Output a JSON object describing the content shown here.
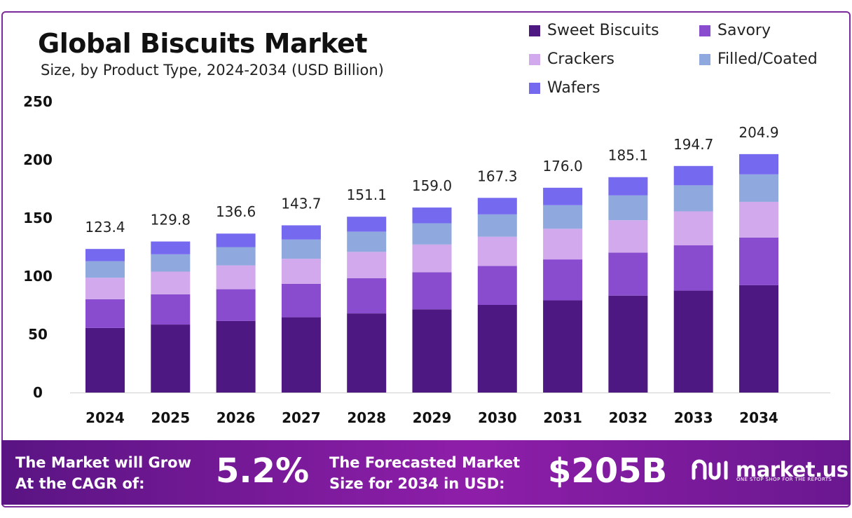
{
  "chart_data": {
    "type": "bar",
    "stacked": true,
    "title": "Global Biscuits Market",
    "subtitle": "Size, by Product Type, 2024-2034 (USD Billion)",
    "categories": [
      "2024",
      "2025",
      "2026",
      "2027",
      "2028",
      "2029",
      "2030",
      "2031",
      "2032",
      "2033",
      "2034"
    ],
    "series": [
      {
        "name": "Sweet Biscuits",
        "color": "#4e1882",
        "values": [
          55.5,
          58.4,
          61.5,
          64.7,
          68.0,
          71.5,
          75.3,
          79.2,
          83.3,
          87.6,
          92.2
        ]
      },
      {
        "name": "Savory",
        "color": "#8a4ccf",
        "values": [
          24.7,
          26.0,
          27.3,
          28.7,
          30.2,
          31.8,
          33.5,
          35.2,
          37.0,
          38.9,
          41.0
        ]
      },
      {
        "name": "Crackers",
        "color": "#d1a9ec",
        "values": [
          18.5,
          19.5,
          20.5,
          21.6,
          22.7,
          23.9,
          25.1,
          26.4,
          27.8,
          29.2,
          30.7
        ]
      },
      {
        "name": "Filled/Coated",
        "color": "#8fa8dd",
        "values": [
          14.2,
          14.9,
          15.7,
          16.5,
          17.4,
          18.3,
          19.2,
          20.2,
          21.3,
          22.4,
          23.6
        ]
      },
      {
        "name": "Wafers",
        "color": "#7569f0",
        "values": [
          10.5,
          11.0,
          11.6,
          12.2,
          12.8,
          13.5,
          14.2,
          15.0,
          15.7,
          16.6,
          17.4
        ]
      }
    ],
    "totals": [
      "123.4",
      "129.8",
      "136.6",
      "143.7",
      "151.1",
      "159.0",
      "167.3",
      "176.0",
      "185.1",
      "194.7",
      "204.9"
    ],
    "yticks": [
      "0",
      "50",
      "100",
      "150",
      "200",
      "250"
    ],
    "ylim": [
      0,
      250
    ],
    "xlabel": "",
    "ylabel": "",
    "legend_position": "top-right"
  },
  "banner": {
    "cagr_label_line1": "The Market will Grow",
    "cagr_label_line2": "At the CAGR of:",
    "cagr_value": "5.2%",
    "forecast_label_line1": "The Forecasted Market",
    "forecast_label_line2": "Size for 2034 in USD:",
    "forecast_value": "$205B",
    "brand_name": "market.us",
    "brand_tagline": "ONE STOP SHOP FOR THE REPORTS"
  },
  "colors": {
    "frame": "#7a2a9a",
    "banner_start": "#5a1483",
    "banner_end": "#8e1ea9"
  }
}
